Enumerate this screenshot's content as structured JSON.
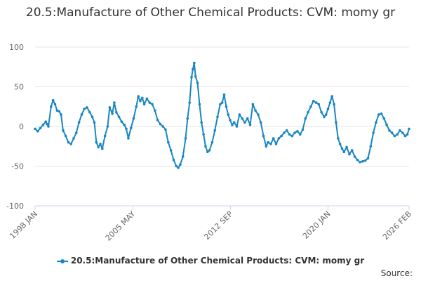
{
  "chart_data": {
    "type": "line",
    "title": "20.5:Manufacture of Other Chemical Products: CVM: momy gr",
    "xlabel": "",
    "ylabel": "",
    "ylim": [
      -100,
      100
    ],
    "yticks": [
      100,
      50,
      0,
      -50,
      -100
    ],
    "xtick_labels": [
      {
        "label": "1998 JAN",
        "x": 1998.0
      },
      {
        "label": "2005 MAY",
        "x": 2005.333
      },
      {
        "label": "2012 SEP",
        "x": 2012.667
      },
      {
        "label": "2020 JAN",
        "x": 2020.0
      },
      {
        "label": "2026 FEB",
        "x": 2026.083
      }
    ],
    "xlim": [
      1998.0,
      2026.083
    ],
    "grid": true,
    "legend_position": "bottom",
    "series": [
      {
        "name": "20.5:Manufacture of Other Chemical Products: CVM: momy gr",
        "color": "#1a86c2",
        "points": [
          [
            1998.0,
            -3
          ],
          [
            1998.2,
            -6
          ],
          [
            1998.4,
            -2
          ],
          [
            1998.6,
            2
          ],
          [
            1998.8,
            6
          ],
          [
            1998.9,
            3
          ],
          [
            1999.0,
            0
          ],
          [
            1999.2,
            25
          ],
          [
            1999.35,
            33
          ],
          [
            1999.5,
            28
          ],
          [
            1999.65,
            20
          ],
          [
            1999.8,
            19
          ],
          [
            1999.95,
            15
          ],
          [
            2000.1,
            -5
          ],
          [
            2000.3,
            -12
          ],
          [
            2000.5,
            -20
          ],
          [
            2000.7,
            -22
          ],
          [
            2000.9,
            -15
          ],
          [
            2001.1,
            -8
          ],
          [
            2001.3,
            5
          ],
          [
            2001.5,
            15
          ],
          [
            2001.7,
            22
          ],
          [
            2001.9,
            24
          ],
          [
            2002.1,
            18
          ],
          [
            2002.3,
            12
          ],
          [
            2002.45,
            5
          ],
          [
            2002.6,
            -20
          ],
          [
            2002.75,
            -26
          ],
          [
            2002.9,
            -22
          ],
          [
            2003.05,
            -28
          ],
          [
            2003.25,
            -12
          ],
          [
            2003.45,
            0
          ],
          [
            2003.6,
            24
          ],
          [
            2003.8,
            16
          ],
          [
            2003.95,
            30
          ],
          [
            2004.1,
            18
          ],
          [
            2004.3,
            12
          ],
          [
            2004.5,
            6
          ],
          [
            2004.7,
            2
          ],
          [
            2004.85,
            -3
          ],
          [
            2005.0,
            -15
          ],
          [
            2005.2,
            -2
          ],
          [
            2005.4,
            10
          ],
          [
            2005.6,
            25
          ],
          [
            2005.75,
            38
          ],
          [
            2005.9,
            32
          ],
          [
            2006.05,
            36
          ],
          [
            2006.2,
            28
          ],
          [
            2006.4,
            35
          ],
          [
            2006.6,
            30
          ],
          [
            2006.8,
            28
          ],
          [
            2007.0,
            20
          ],
          [
            2007.2,
            8
          ],
          [
            2007.4,
            3
          ],
          [
            2007.6,
            0
          ],
          [
            2007.8,
            -4
          ],
          [
            2008.0,
            -20
          ],
          [
            2008.2,
            -30
          ],
          [
            2008.4,
            -42
          ],
          [
            2008.6,
            -50
          ],
          [
            2008.75,
            -52
          ],
          [
            2008.9,
            -48
          ],
          [
            2009.1,
            -38
          ],
          [
            2009.3,
            -15
          ],
          [
            2009.45,
            10
          ],
          [
            2009.6,
            30
          ],
          [
            2009.75,
            62
          ],
          [
            2009.85,
            72
          ],
          [
            2009.95,
            80
          ],
          [
            2010.05,
            63
          ],
          [
            2010.2,
            55
          ],
          [
            2010.35,
            28
          ],
          [
            2010.5,
            5
          ],
          [
            2010.65,
            -10
          ],
          [
            2010.8,
            -25
          ],
          [
            2010.95,
            -32
          ],
          [
            2011.1,
            -30
          ],
          [
            2011.3,
            -20
          ],
          [
            2011.5,
            -5
          ],
          [
            2011.7,
            12
          ],
          [
            2011.9,
            28
          ],
          [
            2012.05,
            30
          ],
          [
            2012.2,
            40
          ],
          [
            2012.35,
            25
          ],
          [
            2012.5,
            15
          ],
          [
            2012.65,
            8
          ],
          [
            2012.8,
            2
          ],
          [
            2012.95,
            5
          ],
          [
            2013.15,
            0
          ],
          [
            2013.35,
            15
          ],
          [
            2013.55,
            10
          ],
          [
            2013.75,
            5
          ],
          [
            2013.95,
            10
          ],
          [
            2014.15,
            2
          ],
          [
            2014.35,
            28
          ],
          [
            2014.55,
            20
          ],
          [
            2014.75,
            15
          ],
          [
            2014.95,
            5
          ],
          [
            2015.15,
            -12
          ],
          [
            2015.35,
            -25
          ],
          [
            2015.5,
            -20
          ],
          [
            2015.7,
            -22
          ],
          [
            2015.9,
            -15
          ],
          [
            2016.1,
            -22
          ],
          [
            2016.3,
            -15
          ],
          [
            2016.5,
            -12
          ],
          [
            2016.7,
            -8
          ],
          [
            2016.9,
            -5
          ],
          [
            2017.1,
            -10
          ],
          [
            2017.3,
            -12
          ],
          [
            2017.5,
            -8
          ],
          [
            2017.7,
            -6
          ],
          [
            2017.9,
            -10
          ],
          [
            2018.1,
            -4
          ],
          [
            2018.3,
            10
          ],
          [
            2018.5,
            18
          ],
          [
            2018.7,
            25
          ],
          [
            2018.9,
            32
          ],
          [
            2019.1,
            30
          ],
          [
            2019.3,
            28
          ],
          [
            2019.5,
            18
          ],
          [
            2019.7,
            12
          ],
          [
            2019.85,
            15
          ],
          [
            2020.0,
            22
          ],
          [
            2020.15,
            30
          ],
          [
            2020.3,
            38
          ],
          [
            2020.45,
            28
          ],
          [
            2020.6,
            5
          ],
          [
            2020.75,
            -15
          ],
          [
            2020.9,
            -22
          ],
          [
            2021.05,
            -28
          ],
          [
            2021.2,
            -32
          ],
          [
            2021.4,
            -26
          ],
          [
            2021.6,
            -35
          ],
          [
            2021.8,
            -30
          ],
          [
            2022.0,
            -38
          ],
          [
            2022.2,
            -42
          ],
          [
            2022.4,
            -45
          ],
          [
            2022.6,
            -44
          ],
          [
            2022.8,
            -43
          ],
          [
            2023.0,
            -40
          ],
          [
            2023.2,
            -25
          ],
          [
            2023.4,
            -8
          ],
          [
            2023.6,
            5
          ],
          [
            2023.8,
            15
          ],
          [
            2024.0,
            16
          ],
          [
            2024.2,
            10
          ],
          [
            2024.4,
            2
          ],
          [
            2024.6,
            -5
          ],
          [
            2024.8,
            -8
          ],
          [
            2025.0,
            -12
          ],
          [
            2025.2,
            -10
          ],
          [
            2025.4,
            -5
          ],
          [
            2025.6,
            -8
          ],
          [
            2025.8,
            -12
          ],
          [
            2025.95,
            -10
          ],
          [
            2026.083,
            -3
          ]
        ]
      }
    ]
  },
  "source_label": "Source:"
}
